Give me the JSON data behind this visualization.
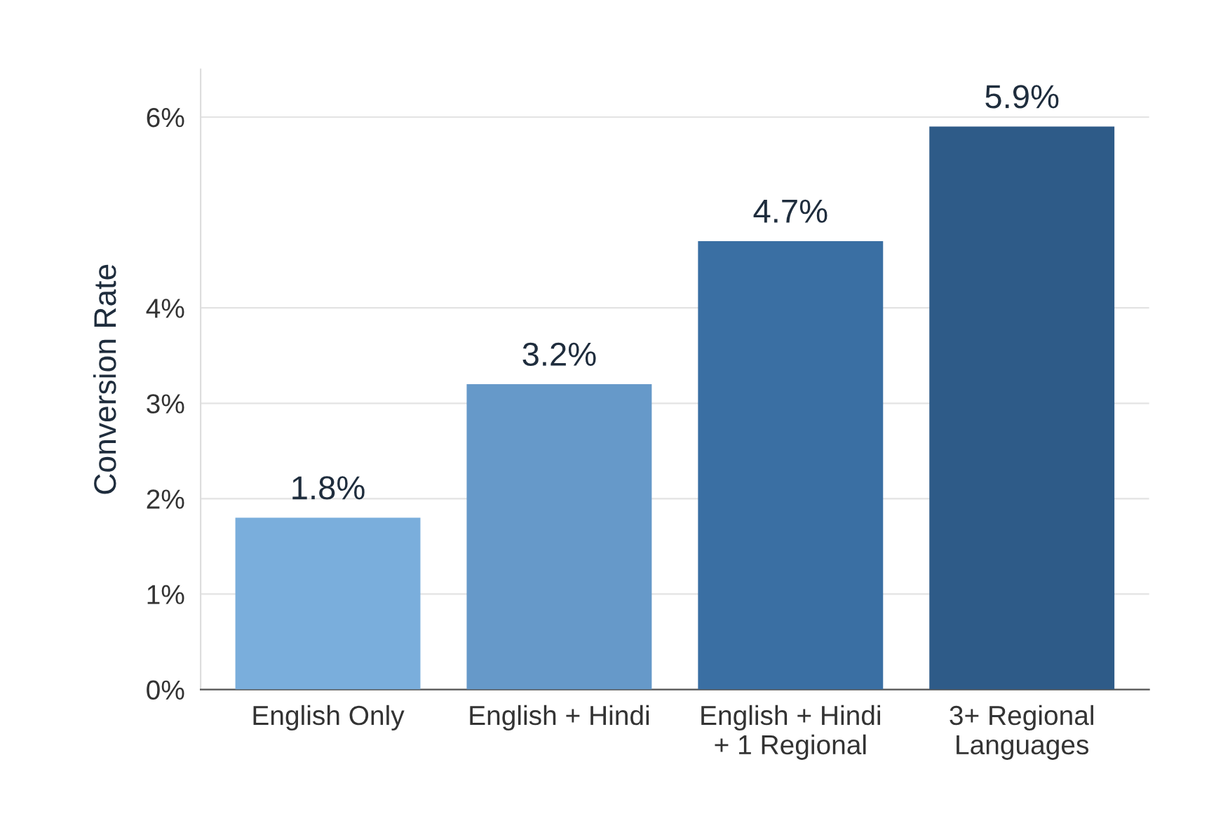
{
  "chart_data": {
    "type": "bar",
    "ylabel": "Conversion Rate",
    "categories": [
      "English Only",
      "English + Hindi",
      "English + Hindi\n+ 1 Regional",
      "3+ Regional\nLanguages"
    ],
    "values": [
      1.8,
      3.2,
      4.7,
      5.9
    ],
    "colors": [
      "#7aaedc",
      "#6699c9",
      "#3a6fa3",
      "#2e5b88"
    ],
    "value_labels": [
      "1.8%",
      "3.2%",
      "4.7%",
      "5.9%"
    ],
    "ylim": [
      0,
      6.5
    ],
    "yticks": [
      {
        "value": 0,
        "label": "0%"
      },
      {
        "value": 1,
        "label": "1%"
      },
      {
        "value": 2,
        "label": "2%"
      },
      {
        "value": 3,
        "label": "3%"
      },
      {
        "value": 4,
        "label": "4%"
      },
      {
        "value": 6,
        "label": "6%"
      }
    ],
    "grid": "y"
  }
}
